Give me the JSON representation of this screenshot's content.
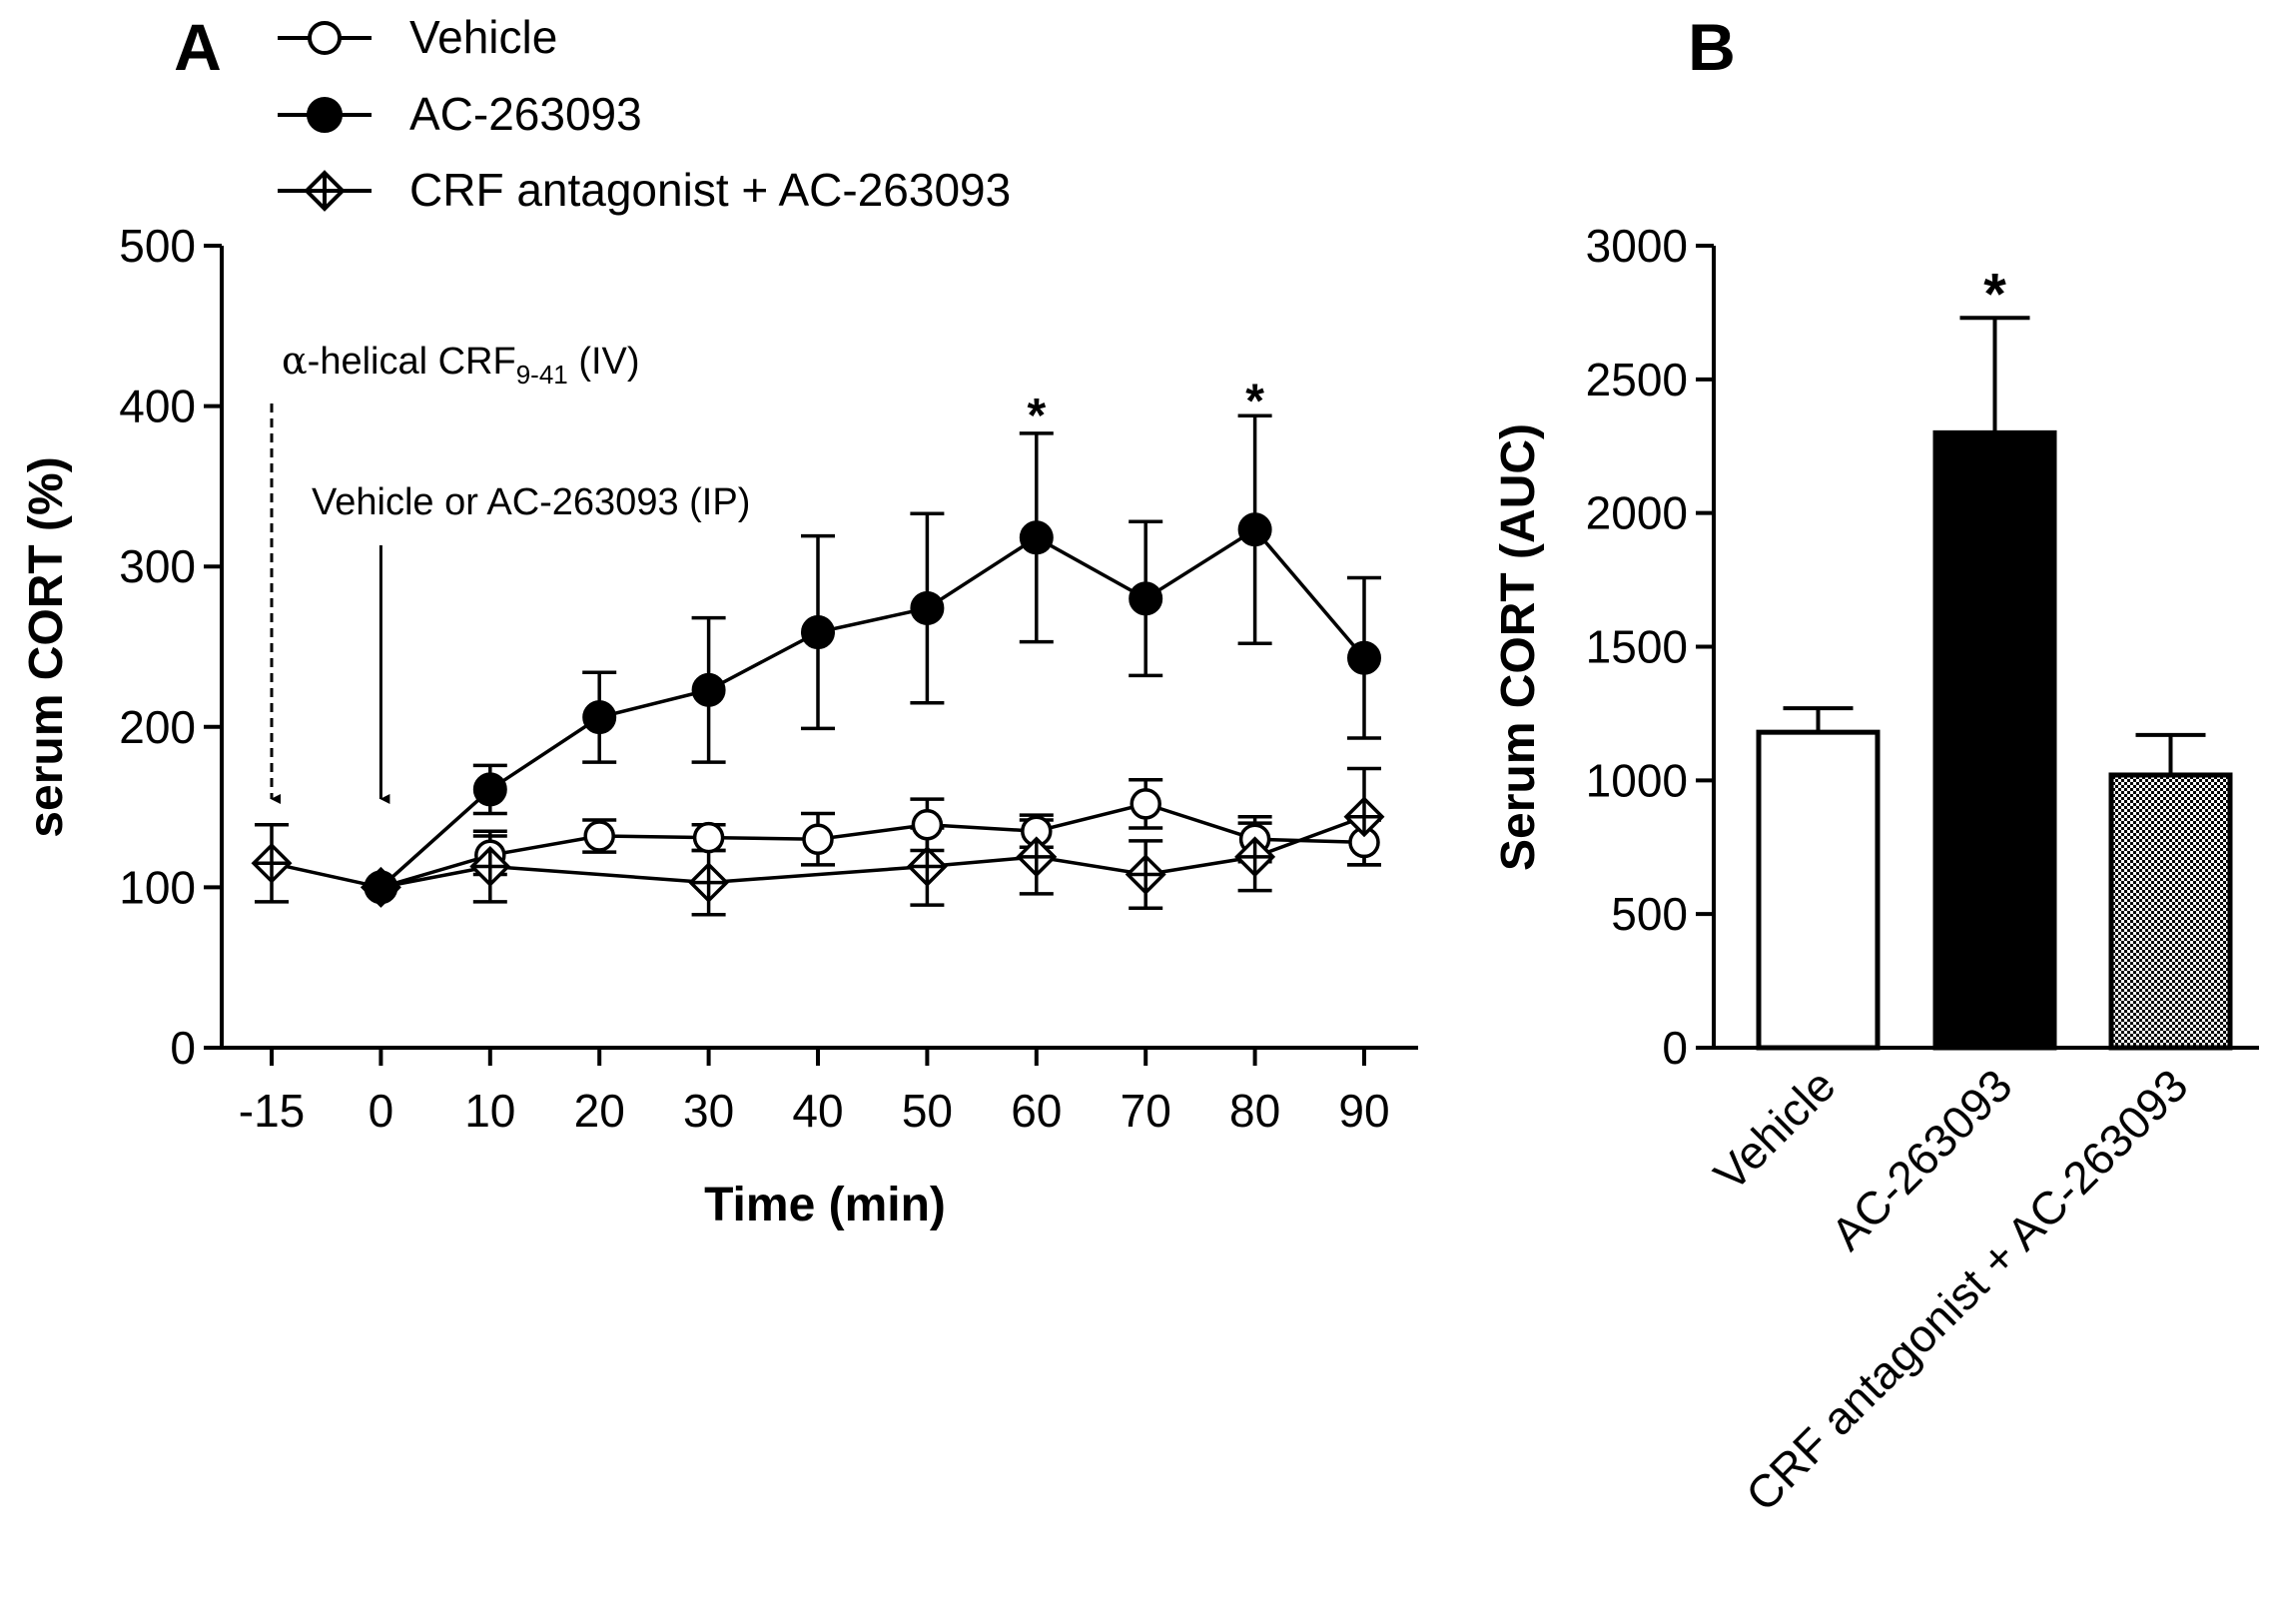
{
  "chart_data": [
    {
      "panel": "A",
      "type": "line",
      "xlabel": "Time (min)",
      "ylabel": "serum CORT (%)",
      "ylim": [
        0,
        500
      ],
      "yticks": [
        0,
        100,
        200,
        300,
        400,
        500
      ],
      "categories": [
        "-15",
        "0",
        "10",
        "20",
        "30",
        "40",
        "50",
        "60",
        "70",
        "80",
        "90"
      ],
      "series": [
        {
          "name": "Vehicle",
          "marker": "open-circle",
          "points": [
            {
              "x": "0",
              "y": 100,
              "err": 0
            },
            {
              "x": "10",
              "y": 120,
              "err": 12
            },
            {
              "x": "20",
              "y": 132,
              "err": 10
            },
            {
              "x": "30",
              "y": 131,
              "err": 8
            },
            {
              "x": "40",
              "y": 130,
              "err": 16
            },
            {
              "x": "50",
              "y": 139,
              "err": 16
            },
            {
              "x": "60",
              "y": 135,
              "err": 10
            },
            {
              "x": "70",
              "y": 152,
              "err": 15
            },
            {
              "x": "80",
              "y": 130,
              "err": 14
            },
            {
              "x": "90",
              "y": 128,
              "err": 14
            }
          ]
        },
        {
          "name": "AC-263093",
          "marker": "filled-circle",
          "points": [
            {
              "x": "0",
              "y": 100,
              "err": 0
            },
            {
              "x": "10",
              "y": 161,
              "err": 15
            },
            {
              "x": "20",
              "y": 206,
              "err": 28
            },
            {
              "x": "30",
              "y": 223,
              "err": 45
            },
            {
              "x": "40",
              "y": 259,
              "err": 60
            },
            {
              "x": "50",
              "y": 274,
              "err": 59
            },
            {
              "x": "60",
              "y": 318,
              "err": 65
            },
            {
              "x": "70",
              "y": 280,
              "err": 48
            },
            {
              "x": "80",
              "y": 323,
              "err": 71
            },
            {
              "x": "90",
              "y": 243,
              "err": 50
            }
          ]
        },
        {
          "name": "CRF antagonist + AC-263093",
          "marker": "diamond-cross",
          "points": [
            {
              "x": "-15",
              "y": 115,
              "err": 24
            },
            {
              "x": "0",
              "y": 100,
              "err": 0
            },
            {
              "x": "10",
              "y": 113,
              "err": 22
            },
            {
              "x": "30",
              "y": 103,
              "err": 20
            },
            {
              "x": "50",
              "y": 113,
              "err": 24
            },
            {
              "x": "60",
              "y": 119,
              "err": 23
            },
            {
              "x": "70",
              "y": 108,
              "err": 21
            },
            {
              "x": "80",
              "y": 119,
              "err": 21
            },
            {
              "x": "90",
              "y": 144,
              "err": 30
            }
          ]
        }
      ],
      "significance": [
        {
          "x": "60",
          "label": "*",
          "y": 398
        },
        {
          "x": "80",
          "label": "*",
          "y": 407
        }
      ],
      "annotations": {
        "alpha_symbol": "α",
        "iv_label_main": "-helical CRF",
        "iv_label_sub": "9-41",
        "iv_label_suffix": " (IV)",
        "iv_arrow_x": "-15",
        "ip_label": "Vehicle or AC-263093 (IP)",
        "ip_arrow_x": "0"
      }
    },
    {
      "panel": "B",
      "type": "bar",
      "ylabel": "Serum CORT (AUC)",
      "ylim": [
        0,
        3000
      ],
      "yticks": [
        0,
        500,
        1000,
        1500,
        2000,
        2500,
        3000
      ],
      "categories": [
        "Vehicle",
        "AC-263093",
        "CRF antagonist + AC-263093"
      ],
      "values": [
        1180,
        2300,
        1020
      ],
      "errors": [
        90,
        430,
        150
      ],
      "fills": [
        "white",
        "black",
        "checker"
      ],
      "significance": [
        {
          "category": "AC-263093",
          "label": "*"
        }
      ]
    }
  ],
  "colors": {
    "line": "#000000",
    "background": "#ffffff"
  }
}
